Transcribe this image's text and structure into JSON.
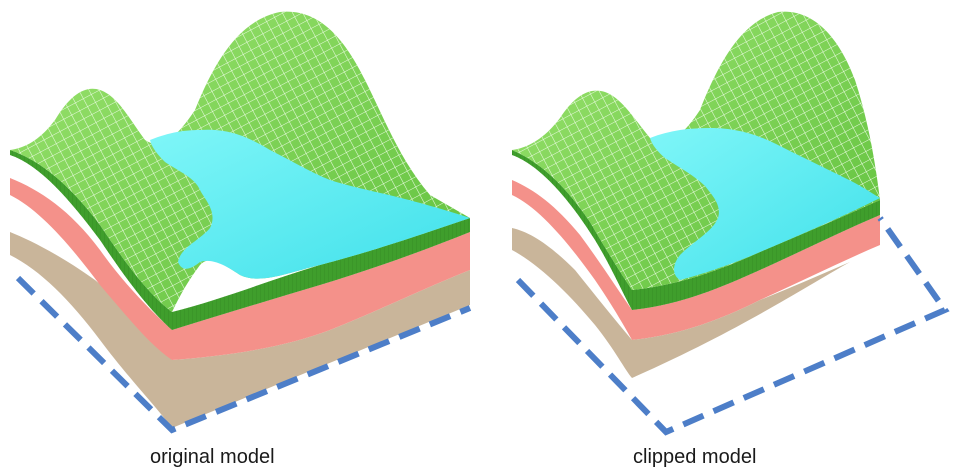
{
  "captions": {
    "left": "original model",
    "right": "clipped model"
  },
  "colors": {
    "terrain_surface": "#7ed957",
    "terrain_grid": "#e9fbe0",
    "terrain_side": "#3f9e2c",
    "water_surface": "#5ff0f5",
    "middle_layer": "#f4918a",
    "bottom_layer": "#c9b59a",
    "clip_outline": "#4d7ec8"
  },
  "icons": [
    "original-terrain-model",
    "clipped-terrain-model"
  ]
}
